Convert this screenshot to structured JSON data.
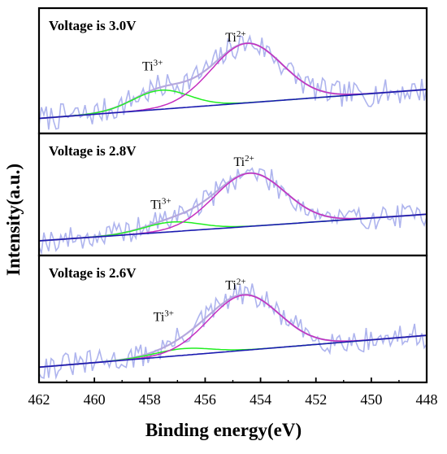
{
  "chart_data": {
    "type": "line",
    "xlabel": "Binding energy(eV)",
    "ylabel": "Intensity(a.u.)",
    "xlim": [
      462,
      448
    ],
    "x_ticks": [
      462,
      460,
      458,
      456,
      454,
      452,
      450,
      448
    ],
    "colors": {
      "raw": "#aeb4ee",
      "envelope": "#b5a8de",
      "ti2": "#c52ec0",
      "ti3": "#22ee22",
      "background": "#1a1ab0"
    },
    "panels": [
      {
        "title": "Voltage is 3.0V",
        "peaks": [
          {
            "label": "Ti",
            "sup": "2+",
            "center": 454.5,
            "fwhm": 3.0,
            "height": 0.72,
            "label_at": [
              454.9,
              0.93
            ]
          },
          {
            "label": "Ti",
            "sup": "3+",
            "center": 457.6,
            "fwhm": 2.4,
            "height": 0.23,
            "label_at": [
              457.9,
              0.58
            ]
          }
        ],
        "background": {
          "start": 0.0,
          "end": 0.35
        },
        "noise": 0.16,
        "seed": 7
      },
      {
        "title": "Voltage is 2.8V",
        "peaks": [
          {
            "label": "Ti",
            "sup": "2+",
            "center": 454.4,
            "fwhm": 3.0,
            "height": 0.66,
            "label_at": [
              454.6,
              0.93
            ]
          },
          {
            "label": "Ti",
            "sup": "3+",
            "center": 457.2,
            "fwhm": 2.4,
            "height": 0.12,
            "label_at": [
              457.6,
              0.4
            ]
          }
        ],
        "background": {
          "start": 0.0,
          "end": 0.33
        },
        "noise": 0.15,
        "seed": 19
      },
      {
        "title": "Voltage is 2.6V",
        "peaks": [
          {
            "label": "Ti",
            "sup": "2+",
            "center": 454.6,
            "fwhm": 3.0,
            "height": 0.66,
            "label_at": [
              454.9,
              0.93
            ]
          },
          {
            "label": "Ti",
            "sup": "3+",
            "center": 456.8,
            "fwhm": 2.4,
            "height": 0.08,
            "label_at": [
              457.5,
              0.55
            ]
          }
        ],
        "background": {
          "start": 0.0,
          "end": 0.38
        },
        "noise": 0.15,
        "seed": 31
      }
    ]
  }
}
